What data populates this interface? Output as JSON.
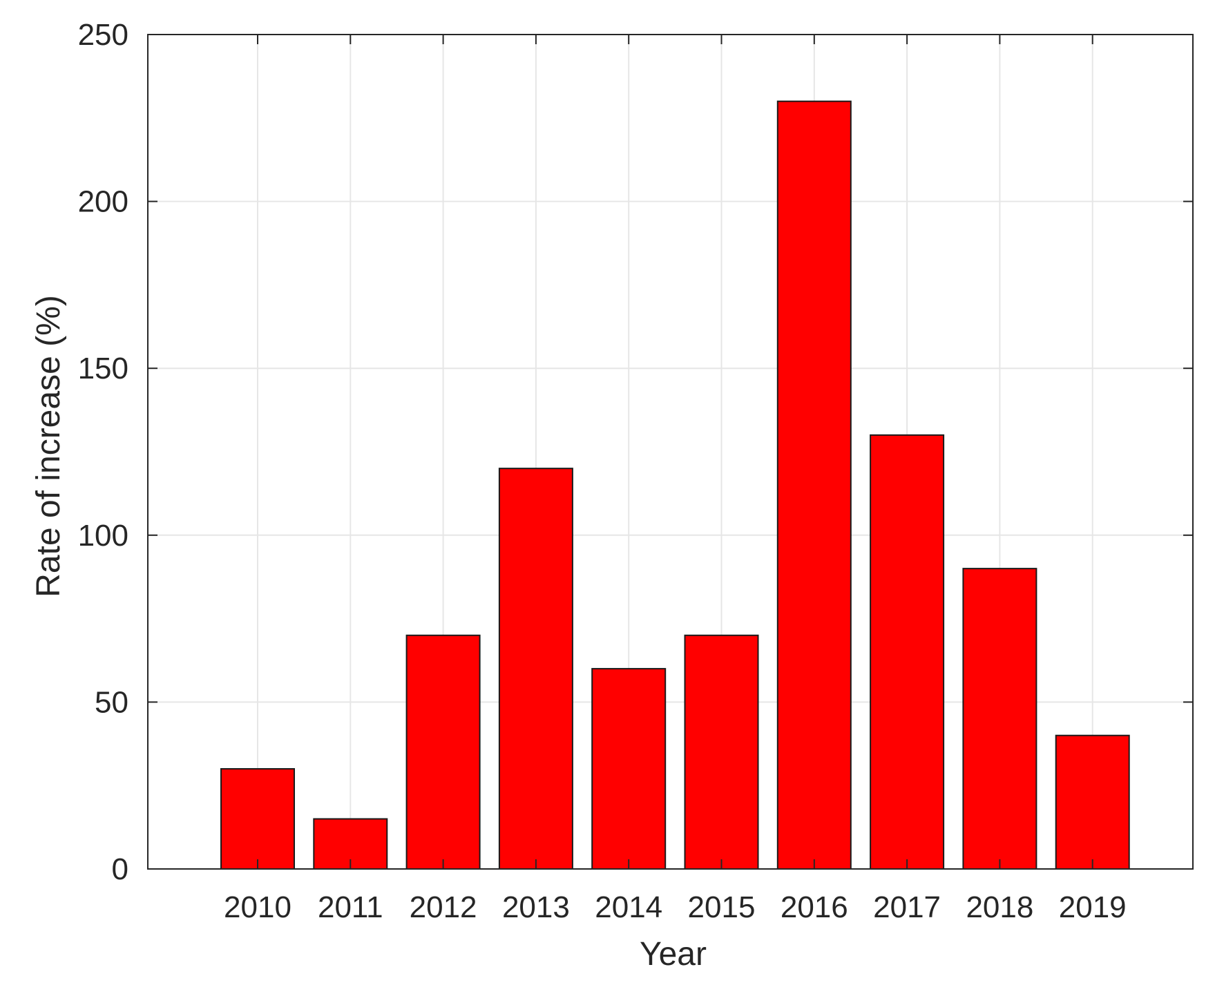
{
  "chart_data": {
    "type": "bar",
    "title": "",
    "xlabel": "Year",
    "ylabel": "Rate of increase (%)",
    "categories": [
      "2010",
      "2011",
      "2012",
      "2013",
      "2014",
      "2015",
      "2016",
      "2017",
      "2018",
      "2019"
    ],
    "values": [
      30,
      15,
      70,
      120,
      60,
      70,
      230,
      130,
      90,
      40
    ],
    "ylim": [
      0,
      250
    ],
    "yticks": [
      0,
      50,
      100,
      150,
      200,
      250
    ],
    "grid": true,
    "legend": "none",
    "colors": {
      "bar_fill": "#ff0000",
      "bar_edge": "#1a1a1a",
      "grid": "#e6e6e6",
      "axis": "#262626"
    }
  }
}
